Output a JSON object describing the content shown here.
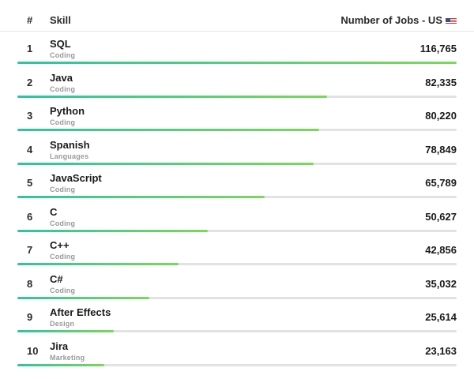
{
  "header": {
    "rank_label": "#",
    "skill_label": "Skill",
    "jobs_label": "Number of Jobs - US"
  },
  "colors": {
    "bar_start": "#2ec4a0",
    "bar_end": "#7ad85a",
    "track": "#e2e2e2"
  },
  "chart_data": {
    "type": "bar",
    "categories": [
      "SQL",
      "Java",
      "Python",
      "Spanish",
      "JavaScript",
      "C",
      "C++",
      "C#",
      "After Effects",
      "Jira"
    ],
    "values": [
      116765,
      82335,
      80220,
      78849,
      65789,
      50627,
      42856,
      35032,
      25614,
      23163
    ],
    "xlim": [
      0,
      116765
    ],
    "rows": [
      {
        "rank": "1",
        "skill": "SQL",
        "category": "Coding",
        "jobs": "116,765"
      },
      {
        "rank": "2",
        "skill": "Java",
        "category": "Coding",
        "jobs": "82,335"
      },
      {
        "rank": "3",
        "skill": "Python",
        "category": "Coding",
        "jobs": "80,220"
      },
      {
        "rank": "4",
        "skill": "Spanish",
        "category": "Languages",
        "jobs": "78,849"
      },
      {
        "rank": "5",
        "skill": "JavaScript",
        "category": "Coding",
        "jobs": "65,789"
      },
      {
        "rank": "6",
        "skill": "C",
        "category": "Coding",
        "jobs": "50,627"
      },
      {
        "rank": "7",
        "skill": "C++",
        "category": "Coding",
        "jobs": "42,856"
      },
      {
        "rank": "8",
        "skill": "C#",
        "category": "Coding",
        "jobs": "35,032"
      },
      {
        "rank": "9",
        "skill": "After Effects",
        "category": "Design",
        "jobs": "25,614"
      },
      {
        "rank": "10",
        "skill": "Jira",
        "category": "Marketing",
        "jobs": "23,163"
      }
    ]
  }
}
